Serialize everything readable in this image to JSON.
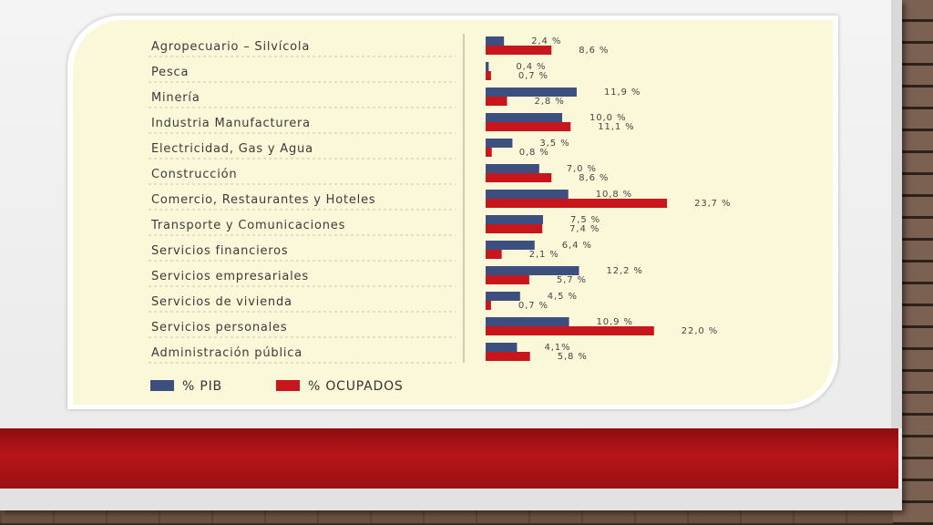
{
  "chart_data": {
    "type": "bar",
    "orientation": "horizontal",
    "categories": [
      "Agropecuario – Silvícola",
      "Pesca",
      "Minería",
      "Industria Manufacturera",
      "Electricidad, Gas y Agua",
      "Construcción",
      "Comercio, Restaurantes y Hoteles",
      "Transporte y Comunicaciones",
      "Servicios financieros",
      "Servicios empresariales",
      "Servicios de vivienda",
      "Servicios personales",
      "Administración pública"
    ],
    "series": [
      {
        "name": "% PIB",
        "color": "#3d4f7e",
        "values": [
          2.4,
          0.4,
          11.9,
          10.0,
          3.5,
          7.0,
          10.8,
          7.5,
          6.4,
          12.2,
          4.5,
          10.9,
          4.1
        ],
        "labels": [
          "2,4 %",
          "0,4 %",
          "11,9 %",
          "10,0 %",
          "3,5 %",
          "7,0 %",
          "10,8 %",
          "7,5 %",
          "6,4 %",
          "12,2 %",
          "4,5 %",
          "10,9 %",
          "4,1%"
        ]
      },
      {
        "name": "% OCUPADOS",
        "color": "#c8161d",
        "values": [
          8.6,
          0.7,
          2.8,
          11.1,
          0.8,
          8.6,
          23.7,
          7.4,
          2.1,
          5.7,
          0.7,
          22.0,
          5.8
        ],
        "labels": [
          "8,6 %",
          "0,7 %",
          "2,8 %",
          "11,1 %",
          "0,8 %",
          "8,6 %",
          "23,7 %",
          "7,4 %",
          "2,1 %",
          "5,7 %",
          "0,7 %",
          "22,0 %",
          "5,8 %"
        ]
      }
    ],
    "legend_position": "bottom-left",
    "grid": false
  }
}
